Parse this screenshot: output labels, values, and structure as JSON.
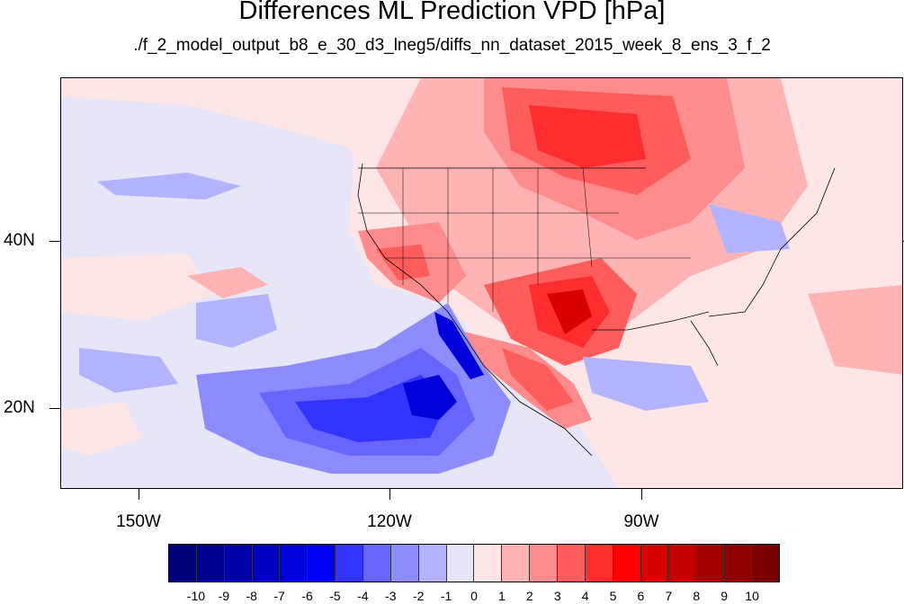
{
  "title": "Differences ML Prediction VPD [hPa]",
  "subtitle": "./f_2_model_output_b8_e_30_d3_lneg5/diffs_nn_dataset_2015_week_8_ens_3_f_2",
  "map": {
    "lat_labels": [
      "40N",
      "20N"
    ],
    "lon_labels": [
      "150W",
      "120W",
      "90W"
    ]
  },
  "colorbar": {
    "labels": [
      "-10",
      "-9",
      "-8",
      "-7",
      "-6",
      "-5",
      "-4",
      "-3",
      "-2",
      "-1",
      "0",
      "1",
      "2",
      "3",
      "4",
      "5",
      "6",
      "7",
      "8",
      "9",
      "10"
    ],
    "colors": [
      "#00007a",
      "#00008f",
      "#0000a8",
      "#0000c2",
      "#0000db",
      "#0000f5",
      "#3333ff",
      "#6666ff",
      "#8c8cff",
      "#b3b3ff",
      "#e6e6f8",
      "#ffe6e6",
      "#ffb3b3",
      "#ff8c8c",
      "#ff5c5c",
      "#ff2e2e",
      "#ff0000",
      "#db0000",
      "#c20000",
      "#a30000",
      "#8f0000",
      "#7a0000"
    ]
  }
}
